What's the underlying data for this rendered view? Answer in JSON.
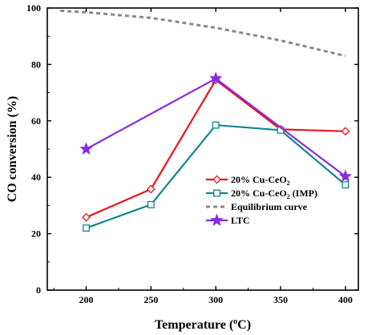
{
  "chart_data": {
    "type": "line",
    "title": "",
    "xlabel": "Temperature (°C)",
    "xlabel_parts": {
      "main": "Temperature (",
      "sup": "o",
      "unit": "C)"
    },
    "ylabel": "CO conversion (%)",
    "xlim": [
      170,
      410
    ],
    "ylim": [
      0,
      100
    ],
    "xticks": [
      200,
      250,
      300,
      350,
      400
    ],
    "yticks": [
      0,
      20,
      40,
      60,
      80,
      100
    ],
    "grid": false,
    "legend_position": "center-right",
    "series": [
      {
        "name": "20% Cu-CeO2",
        "label_parts": {
          "main": "20% Cu-CeO",
          "sub": "2",
          "tail": ""
        },
        "color": "#e8161c",
        "marker": "diamond",
        "line": "solid",
        "x": [
          200,
          250,
          300,
          350,
          400
        ],
        "y": [
          25.8,
          35.8,
          74.5,
          57.0,
          56.3
        ]
      },
      {
        "name": "20% Cu-CeO2 (IMP)",
        "label_parts": {
          "main": "20% Cu-CeO",
          "sub": "2",
          "tail": " (IMP)"
        },
        "color": "#12858a",
        "marker": "square",
        "line": "solid",
        "x": [
          200,
          250,
          300,
          350,
          400
        ],
        "y": [
          22.0,
          30.3,
          58.5,
          56.7,
          37.3
        ]
      },
      {
        "name": "Equilibrium curve",
        "label_parts": {
          "main": "Equilibrium curve",
          "sub": "",
          "tail": ""
        },
        "color": "#888888",
        "marker": "none",
        "line": "dashed",
        "x": [
          180,
          200,
          250,
          300,
          350,
          400
        ],
        "y": [
          99.0,
          98.5,
          96.5,
          93.0,
          88.5,
          83.0
        ]
      },
      {
        "name": "LTC",
        "label_parts": {
          "main": "LTC",
          "sub": "",
          "tail": ""
        },
        "color": "#8a2be2",
        "marker": "star",
        "line": "solid",
        "x": [
          200,
          300,
          400
        ],
        "y": [
          50.0,
          75.0,
          40.3
        ]
      }
    ]
  }
}
